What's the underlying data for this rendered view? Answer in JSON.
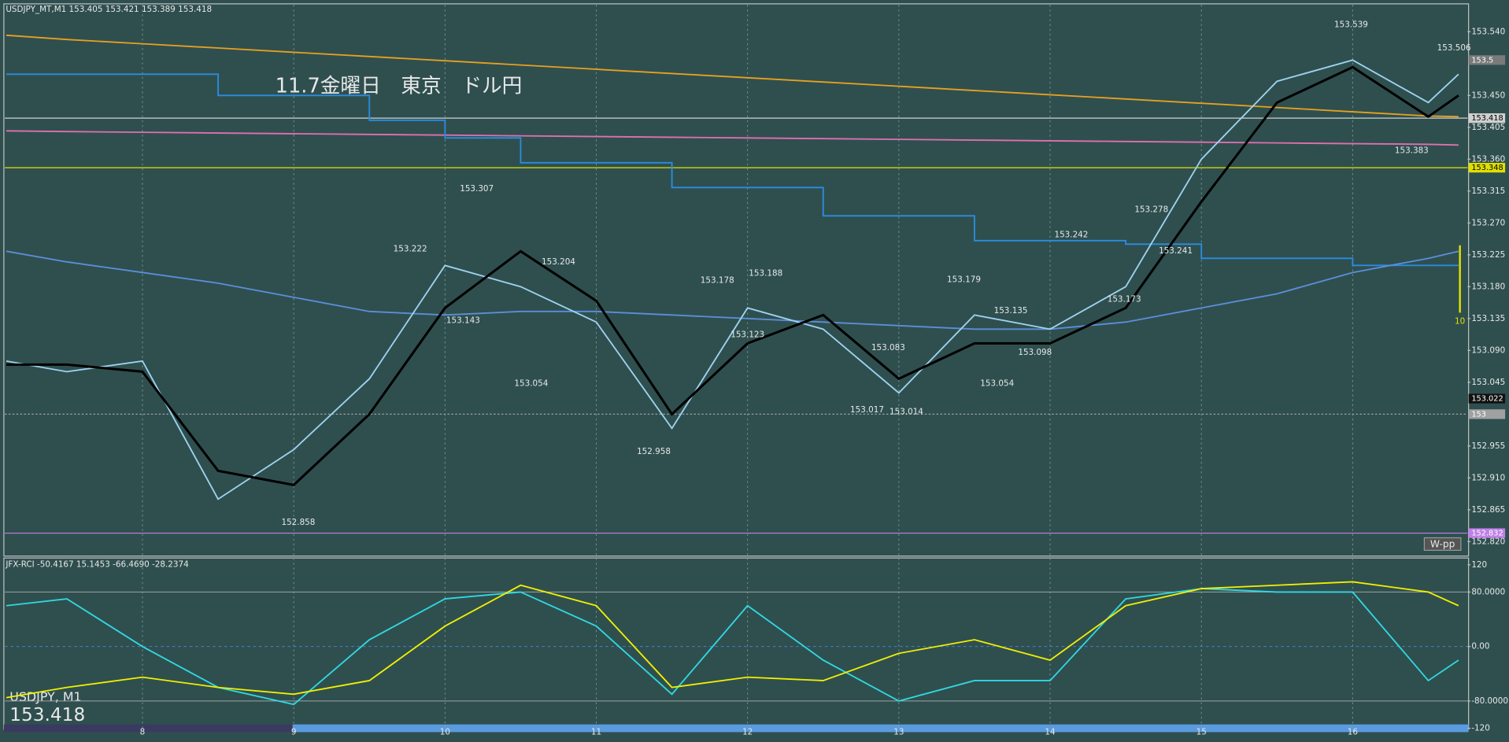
{
  "chart_data": [
    {
      "type": "line",
      "header": "USDJPY_MT,M1  153.405 153.421 153.389 153.418",
      "title": "11.7金曜日　東京　ドル円",
      "symbol_label": "USDJPY, M1",
      "last_price": 153.418,
      "button": "W-pp",
      "side_label": "10",
      "xlim": [
        7.09,
        16.76
      ],
      "xticks": [
        8,
        9,
        10,
        11,
        12,
        13,
        14,
        15,
        16
      ],
      "ylim": [
        152.801,
        153.578
      ],
      "yticks": [
        {
          "value": 153.54,
          "label": "153.540"
        },
        {
          "value": 153.45,
          "label": "153.450"
        },
        153.405,
        {
          "value": 153.36,
          "label": "153.360"
        },
        153.315,
        {
          "value": 153.27,
          "label": "153.270"
        },
        153.225,
        {
          "value": 153.18,
          "label": "153.180"
        },
        153.135,
        {
          "value": 153.09,
          "label": "153.090"
        },
        153.045,
        152.955,
        {
          "value": 152.91,
          "label": "152.910"
        },
        152.865,
        {
          "value": 152.82,
          "label": "152.820"
        }
      ],
      "grid": true,
      "x": [
        7.1,
        7.5,
        8,
        8.5,
        9,
        9.5,
        10,
        10.5,
        11,
        11.5,
        12,
        12.5,
        13,
        13.5,
        14,
        14.5,
        15,
        15.5,
        16,
        16.5,
        16.7
      ],
      "series": [
        {
          "color": "#e8a020",
          "values": [
            153.535,
            153.529,
            153.523,
            153.517,
            153.511,
            153.505,
            153.499,
            153.493,
            153.487,
            153.481,
            153.475,
            153.469,
            153.463,
            153.457,
            153.451,
            153.445,
            153.439,
            153.433,
            153.427,
            153.421,
            153.42
          ]
        },
        {
          "color": "#e070b0",
          "values": [
            153.4,
            153.399,
            153.398,
            153.397,
            153.396,
            153.395,
            153.394,
            153.393,
            153.392,
            153.391,
            153.39,
            153.389,
            153.388,
            153.387,
            153.386,
            153.385,
            153.384,
            153.383,
            153.382,
            153.381,
            153.38
          ]
        },
        {
          "color": "#2a8de0",
          "step": true,
          "values": [
            153.48,
            153.48,
            153.48,
            153.45,
            153.45,
            153.415,
            153.39,
            153.355,
            153.355,
            153.32,
            153.32,
            153.28,
            153.28,
            153.245,
            153.245,
            153.24,
            153.22,
            153.22,
            153.21,
            153.21,
            153.21
          ]
        },
        {
          "color": "#5b8fd8",
          "values": [
            153.23,
            153.215,
            153.2,
            153.185,
            153.165,
            153.145,
            153.14,
            153.145,
            153.145,
            153.14,
            153.135,
            153.13,
            153.125,
            153.12,
            153.12,
            153.13,
            153.15,
            153.17,
            153.2,
            153.22,
            153.23
          ]
        },
        {
          "color": "#9fd3f0",
          "values": [
            153.075,
            153.06,
            153.075,
            152.88,
            152.95,
            153.05,
            153.21,
            153.18,
            153.13,
            152.98,
            153.15,
            153.12,
            153.03,
            153.14,
            153.12,
            153.18,
            153.36,
            153.47,
            153.5,
            153.44,
            153.48
          ]
        },
        {
          "color": "#000000",
          "values": [
            153.07,
            153.07,
            153.06,
            152.92,
            152.9,
            153.0,
            153.15,
            153.23,
            153.16,
            153.0,
            153.1,
            153.14,
            153.05,
            153.1,
            153.1,
            153.15,
            153.3,
            153.44,
            153.49,
            153.42,
            153.45
          ]
        }
      ],
      "hlines": [
        {
          "value": 153.5,
          "color": "#7a7a7a",
          "style": "none"
        },
        {
          "value": 153.418,
          "color": "#d0d0d0",
          "style": "solid"
        },
        {
          "value": 153.348,
          "color": "#e0e000",
          "style": "solid"
        },
        {
          "value": 153.022,
          "color": "#111111",
          "style": "none"
        },
        {
          "value": 153.0,
          "color": "#a0a0a0",
          "style": "dotted"
        },
        {
          "value": 152.832,
          "color": "#c080e8",
          "style": "solid"
        }
      ],
      "annotations": [
        {
          "x": 10.21,
          "value": 153.307
        },
        {
          "x": 9.77,
          "value": 153.222
        },
        {
          "x": 10.75,
          "value": 153.204
        },
        {
          "x": 10.12,
          "value": 153.143
        },
        {
          "x": 10.57,
          "value": 153.054
        },
        {
          "x": 11.38,
          "value": 152.958
        },
        {
          "x": 11.8,
          "value": 153.178
        },
        {
          "x": 12.12,
          "value": 153.188
        },
        {
          "x": 12.0,
          "value": 153.123
        },
        {
          "x": 12.93,
          "value": 153.083
        },
        {
          "x": 12.79,
          "value": 153.017
        },
        {
          "x": 13.05,
          "value": 153.014
        },
        {
          "x": 13.43,
          "value": 153.179
        },
        {
          "x": 13.74,
          "value": 153.135
        },
        {
          "x": 13.9,
          "value": 153.098
        },
        {
          "x": 13.65,
          "value": 153.054
        },
        {
          "x": 14.14,
          "value": 153.242
        },
        {
          "x": 14.49,
          "value": 153.173
        },
        {
          "x": 14.67,
          "value": 153.278
        },
        {
          "x": 14.83,
          "value": 153.241
        },
        {
          "x": 15.99,
          "value": 153.539
        },
        {
          "x": 16.39,
          "value": 153.383
        },
        {
          "x": 16.67,
          "value": 153.506
        },
        {
          "x": 9.03,
          "value": 152.858
        }
      ]
    },
    {
      "type": "line",
      "header": "JFX-RCI -50.4167 15.1453 -66.4690 -28.2374",
      "xlim": [
        7.09,
        16.76
      ],
      "ylim": [
        -120,
        130
      ],
      "yticks": [
        120,
        {
          "value": 80,
          "label": "80.0000"
        },
        {
          "value": 0,
          "label": "0.00"
        },
        {
          "value": -80,
          "label": "-80.0000"
        },
        -120
      ],
      "x": [
        7.1,
        7.5,
        8,
        8.5,
        9,
        9.5,
        10,
        10.5,
        11,
        11.5,
        12,
        12.5,
        13,
        13.5,
        14,
        14.5,
        15,
        15.5,
        16,
        16.5,
        16.7
      ],
      "series": [
        {
          "color": "#30d8e0",
          "values": [
            60,
            70,
            0,
            -60,
            -85,
            10,
            70,
            80,
            30,
            -70,
            60,
            -20,
            -80,
            -50,
            -50,
            70,
            85,
            80,
            80,
            -50,
            -20
          ]
        },
        {
          "color": "#f0f000",
          "values": [
            -75,
            -60,
            -45,
            -60,
            -70,
            -50,
            30,
            90,
            60,
            -60,
            -45,
            -50,
            -10,
            10,
            -20,
            60,
            85,
            90,
            95,
            80,
            60
          ]
        }
      ]
    }
  ]
}
